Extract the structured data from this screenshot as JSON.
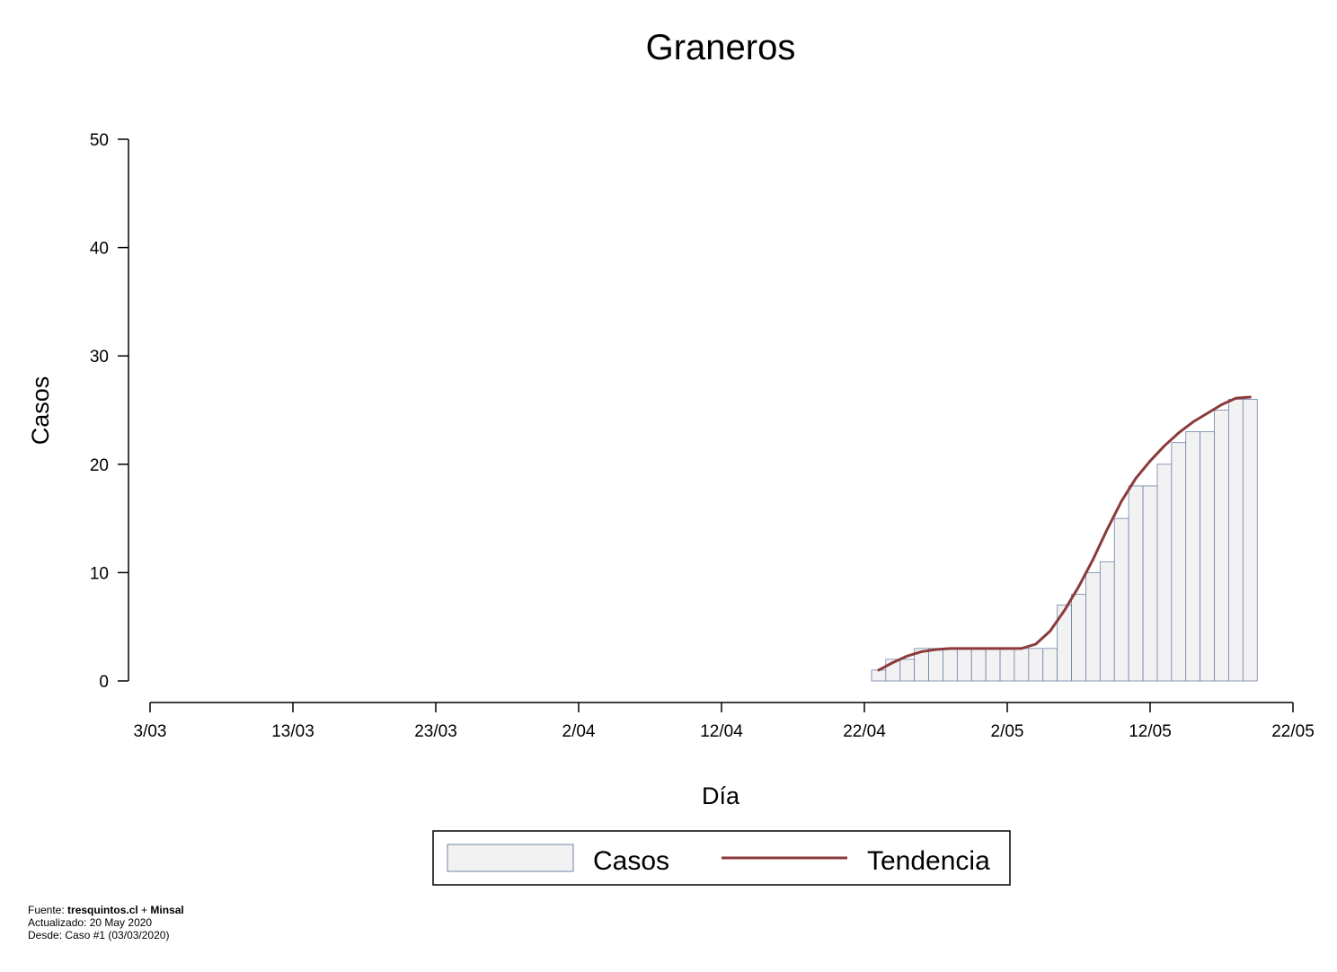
{
  "chart_data": {
    "type": "bar",
    "title": "Graneros",
    "xlabel": "Día",
    "ylabel": "Casos",
    "ylim": [
      0,
      50
    ],
    "yticks": [
      0,
      10,
      20,
      30,
      40,
      50
    ],
    "xlim": [
      "2020-03-03",
      "2020-05-22"
    ],
    "xticks": [
      {
        "date": "2020-03-03",
        "label": "3/03"
      },
      {
        "date": "2020-03-13",
        "label": "13/03"
      },
      {
        "date": "2020-03-23",
        "label": "23/03"
      },
      {
        "date": "2020-04-02",
        "label": "2/04"
      },
      {
        "date": "2020-04-12",
        "label": "12/04"
      },
      {
        "date": "2020-04-22",
        "label": "22/04"
      },
      {
        "date": "2020-05-02",
        "label": "2/05"
      },
      {
        "date": "2020-05-12",
        "label": "12/05"
      },
      {
        "date": "2020-05-22",
        "label": "22/05"
      }
    ],
    "grid": false,
    "legend_position": "bottom",
    "series": [
      {
        "name": "Casos",
        "kind": "bar",
        "color": "#f2f2f2",
        "edge_color": "#7080a8",
        "x": [
          "2020-04-23",
          "2020-04-24",
          "2020-04-25",
          "2020-04-26",
          "2020-04-27",
          "2020-04-28",
          "2020-04-29",
          "2020-04-30",
          "2020-05-01",
          "2020-05-02",
          "2020-05-03",
          "2020-05-04",
          "2020-05-05",
          "2020-05-06",
          "2020-05-07",
          "2020-05-08",
          "2020-05-09",
          "2020-05-10",
          "2020-05-11",
          "2020-05-12",
          "2020-05-13",
          "2020-05-14",
          "2020-05-15",
          "2020-05-16",
          "2020-05-17",
          "2020-05-18",
          "2020-05-19"
        ],
        "values": [
          1,
          2,
          2,
          3,
          3,
          3,
          3,
          3,
          3,
          3,
          3,
          3,
          3,
          7,
          8,
          10,
          11,
          15,
          18,
          18,
          20,
          22,
          23,
          23,
          25,
          26,
          26
        ]
      },
      {
        "name": "Tendencia",
        "kind": "line",
        "color": "#8b3a3a",
        "x": [
          "2020-04-23",
          "2020-04-24",
          "2020-04-25",
          "2020-04-26",
          "2020-04-27",
          "2020-04-28",
          "2020-04-29",
          "2020-04-30",
          "2020-05-01",
          "2020-05-02",
          "2020-05-03",
          "2020-05-04",
          "2020-05-05",
          "2020-05-06",
          "2020-05-07",
          "2020-05-08",
          "2020-05-09",
          "2020-05-10",
          "2020-05-11",
          "2020-05-12",
          "2020-05-13",
          "2020-05-14",
          "2020-05-15",
          "2020-05-16",
          "2020-05-17",
          "2020-05-18",
          "2020-05-19"
        ],
        "values": [
          1.0,
          1.7,
          2.3,
          2.7,
          2.9,
          3.0,
          3.0,
          3.0,
          3.0,
          3.0,
          3.0,
          3.4,
          4.6,
          6.5,
          8.7,
          11.2,
          14.0,
          16.6,
          18.7,
          20.3,
          21.7,
          22.9,
          23.9,
          24.7,
          25.5,
          26.1,
          26.2
        ]
      }
    ]
  },
  "footer": {
    "line1_prefix": "Fuente: ",
    "line1_source1": "tresquintos.cl",
    "line1_sep": " + ",
    "line1_source2": "Minsal",
    "line2": "Actualizado: 20 May 2020",
    "line3": "Desde: Caso #1  (03/03/2020)"
  }
}
